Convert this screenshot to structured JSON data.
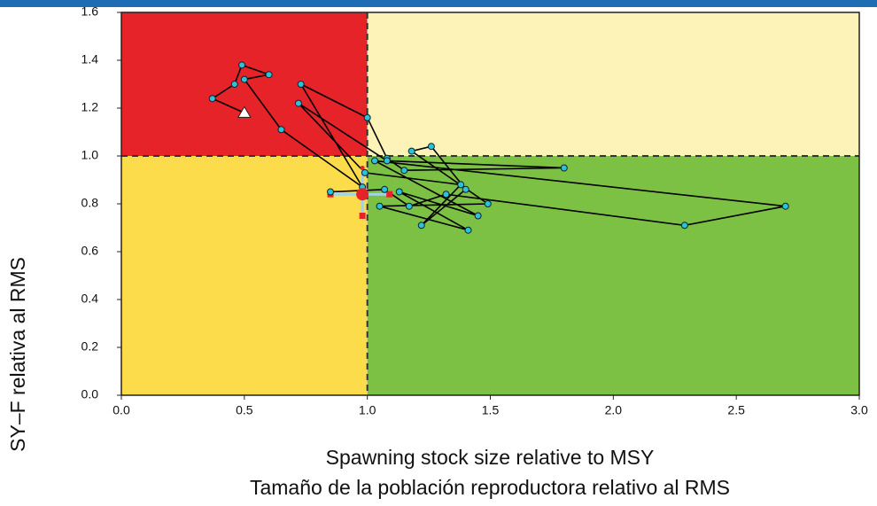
{
  "chart_data": {
    "type": "kobe",
    "x_label_lines": [
      "Spawning stock size relative to MSY",
      "Tamaño de la población reproductora relativo al RMS"
    ],
    "y_label": "SY–F relativa al RMS",
    "xlim": [
      0,
      3
    ],
    "ylim": [
      0,
      1.6
    ],
    "xticks": [
      {
        "value": 0,
        "label": "0.0"
      },
      0.5,
      {
        "value": 1,
        "label": "1.0"
      },
      1.5,
      {
        "value": 2,
        "label": "2.0"
      },
      2.5,
      {
        "value": 3,
        "label": "3.0"
      }
    ],
    "yticks": [
      {
        "value": 0,
        "label": "0.0"
      },
      0.2,
      0.4,
      0.6,
      0.8,
      {
        "value": 1,
        "label": "1.0"
      },
      1.2,
      1.4,
      1.6
    ],
    "reference": {
      "x": 1,
      "y": 1
    },
    "quadrant_colors": {
      "top_left": "#e52329",
      "top_right": "#fdf3b9",
      "bottom_left": "#fcdc4a",
      "bottom_right": "#7cc143"
    },
    "x": [
      0.5,
      0.37,
      0.46,
      0.49,
      0.6,
      0.5,
      0.65,
      0.98,
      0.73,
      1.0,
      1.08,
      1.15,
      1.8,
      1.08,
      0.72,
      0.99,
      1.38,
      1.22,
      1.4,
      1.26,
      1.18,
      1.49,
      1.05,
      1.41,
      1.13,
      1.45,
      1.03,
      2.7,
      2.29,
      1.32,
      1.17,
      1.07,
      0.85
    ],
    "y": [
      1.18,
      1.24,
      1.3,
      1.38,
      1.34,
      1.32,
      1.11,
      0.87,
      1.3,
      1.16,
      0.99,
      0.94,
      0.95,
      0.98,
      1.22,
      0.93,
      0.88,
      0.71,
      0.86,
      1.04,
      1.02,
      0.8,
      0.79,
      0.69,
      0.85,
      0.75,
      0.98,
      0.79,
      0.71,
      0.84,
      0.79,
      0.86,
      0.85
    ],
    "line_color": "#000000",
    "point_color": "#2bc3d8",
    "current": {
      "x": 0.98,
      "y": 0.84
    },
    "ci_x": [
      0.85,
      1.09
    ],
    "ci_y": [
      0.75,
      0.95
    ],
    "current_color": "#e52329",
    "ci_color": "#9fd3ea"
  }
}
